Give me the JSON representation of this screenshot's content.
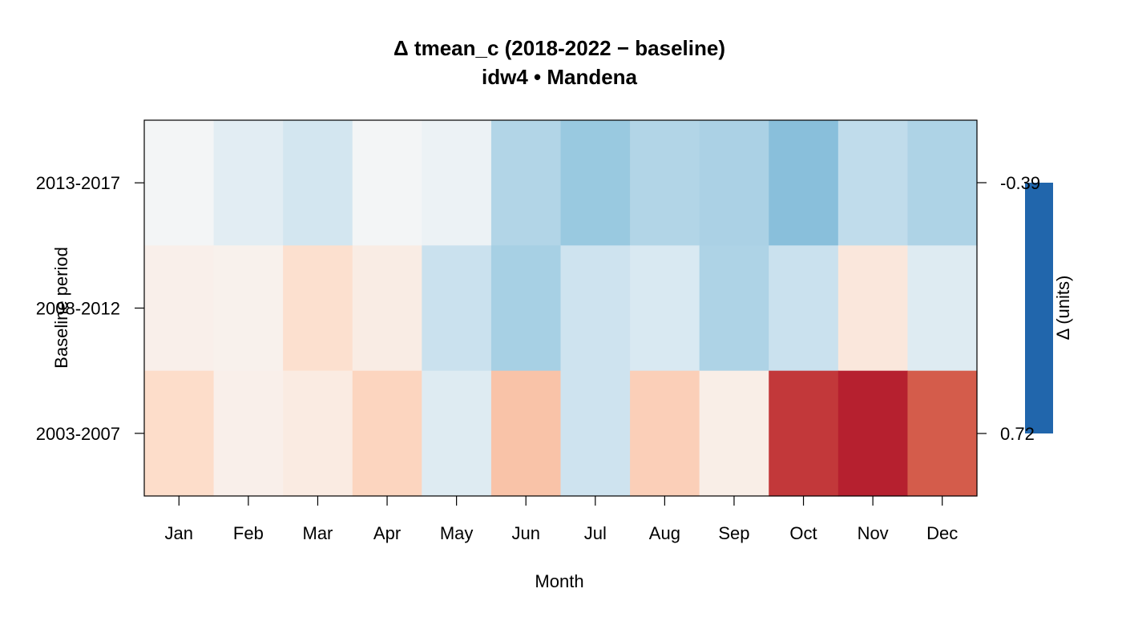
{
  "chart_data": {
    "type": "heatmap",
    "title": "Δ tmean_c (2018-2022 − baseline)",
    "subtitle": "idw4 • Mandena",
    "xlabel": "Month",
    "ylabel": "Baseline period",
    "x_categories": [
      "Jan",
      "Feb",
      "Mar",
      "Apr",
      "May",
      "Jun",
      "Jul",
      "Aug",
      "Sep",
      "Oct",
      "Nov",
      "Dec"
    ],
    "y_categories": [
      "2013-2017",
      "2008-2012",
      "2003-2007"
    ],
    "values": [
      [
        -0.02,
        -0.1,
        -0.17,
        -0.02,
        -0.05,
        -0.27,
        -0.34,
        -0.27,
        -0.29,
        -0.38,
        -0.23,
        -0.28
      ],
      [
        0.05,
        0.04,
        0.15,
        0.07,
        -0.2,
        -0.3,
        -0.19,
        -0.14,
        -0.28,
        -0.2,
        0.1,
        -0.12
      ],
      [
        0.17,
        0.05,
        0.08,
        0.2,
        -0.12,
        0.26,
        -0.19,
        0.22,
        0.06,
        0.64,
        0.7,
        0.55
      ]
    ],
    "colorbar": {
      "label": "Δ (units)",
      "min_label": "-0.39",
      "max_label": "0.72",
      "min": -0.39,
      "max": 0.72
    },
    "grid": false
  }
}
